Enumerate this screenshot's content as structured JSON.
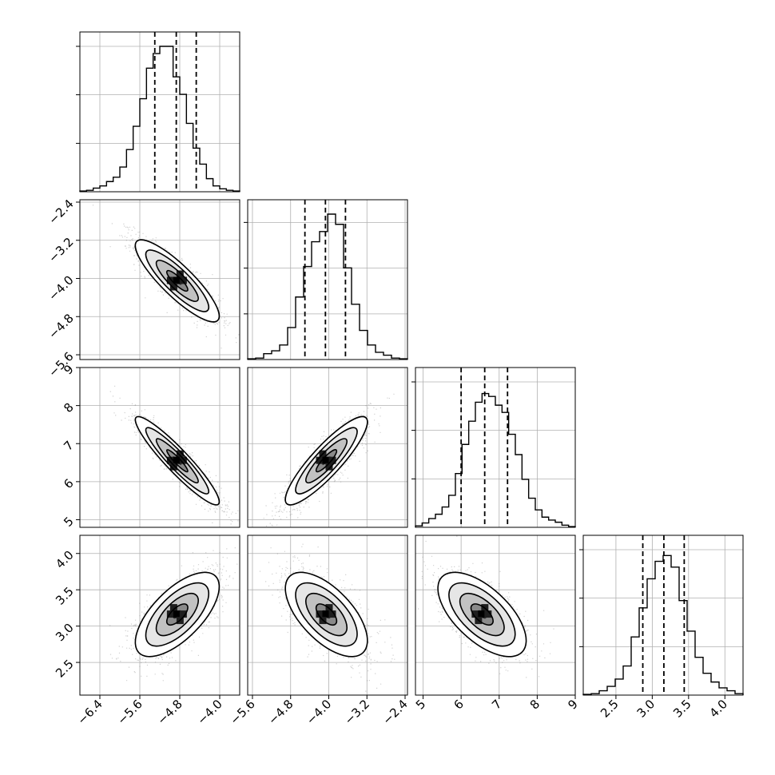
{
  "chart_data": {
    "type": "corner",
    "grid": true,
    "params": [
      {
        "range": [
          -6.8,
          -3.6
        ],
        "ticks": [
          "−6.4",
          "−5.6",
          "−4.8",
          "−4.0"
        ],
        "tick_values": [
          -6.4,
          -5.6,
          -4.8,
          -4.0
        ],
        "hist_max": 1.0,
        "hist_ticks": [
          1.0,
          0.667,
          0.333
        ],
        "quantiles": [
          -5.3,
          -4.87,
          -4.47
        ],
        "hist": [
          0.005,
          0.01,
          0.025,
          0.04,
          0.07,
          0.1,
          0.17,
          0.29,
          0.45,
          0.64,
          0.85,
          0.95,
          1.0,
          1.0,
          0.79,
          0.67,
          0.47,
          0.3,
          0.19,
          0.09,
          0.04,
          0.02,
          0.01,
          0.005
        ]
      },
      {
        "range": [
          -5.7,
          -2.35
        ],
        "ticks": [
          "−5.6",
          "−4.8",
          "−4.0",
          "−3.2",
          "−2.4"
        ],
        "tick_values": [
          -5.6,
          -4.8,
          -4.0,
          -3.2,
          -2.4
        ],
        "hist_max": 1.0,
        "hist_ticks": [
          0.943,
          0.629,
          0.314
        ],
        "quantiles": [
          -4.5,
          -4.07,
          -3.65
        ],
        "hist": [
          0.005,
          0.01,
          0.04,
          0.06,
          0.1,
          0.22,
          0.43,
          0.64,
          0.81,
          0.88,
          1.0,
          0.93,
          0.63,
          0.38,
          0.2,
          0.1,
          0.05,
          0.03,
          0.01,
          0.005
        ]
      },
      {
        "range": [
          4.8,
          9.0
        ],
        "ticks": [
          "5",
          "6",
          "7",
          "8",
          "9"
        ],
        "tick_values": [
          5,
          6,
          7,
          8,
          9
        ],
        "hist_max": 1.0,
        "hist_ticks": [
          1.0,
          0.667,
          0.333
        ],
        "quantiles": [
          6.0,
          6.62,
          7.22
        ],
        "hist": [
          0.01,
          0.03,
          0.06,
          0.09,
          0.14,
          0.22,
          0.37,
          0.57,
          0.73,
          0.86,
          0.92,
          0.9,
          0.84,
          0.79,
          0.64,
          0.5,
          0.33,
          0.2,
          0.12,
          0.07,
          0.05,
          0.035,
          0.015,
          0.005
        ]
      },
      {
        "range": [
          2.05,
          4.25
        ],
        "ticks": [
          "2.5",
          "3.0",
          "3.5",
          "4.0"
        ],
        "tick_values": [
          2.5,
          3.0,
          3.5,
          4.0
        ],
        "hist_max": 1.0,
        "hist_ticks": [
          1.0,
          0.667,
          0.333
        ],
        "quantiles": [
          2.87,
          3.16,
          3.44
        ],
        "hist": [
          0.005,
          0.01,
          0.03,
          0.06,
          0.11,
          0.2,
          0.4,
          0.6,
          0.8,
          0.92,
          0.96,
          0.88,
          0.65,
          0.44,
          0.26,
          0.15,
          0.09,
          0.05,
          0.03,
          0.01
        ]
      }
    ],
    "pairs": [
      {
        "row": 1,
        "col": 0,
        "mean": [
          -4.85,
          -4.05
        ],
        "sd": [
          0.42,
          0.43
        ],
        "rho": -0.86
      },
      {
        "row": 2,
        "col": 0,
        "mean": [
          -4.85,
          6.55
        ],
        "sd": [
          0.42,
          0.58
        ],
        "rho": -0.93
      },
      {
        "row": 2,
        "col": 1,
        "mean": [
          -4.05,
          6.55
        ],
        "sd": [
          0.43,
          0.58
        ],
        "rho": 0.88
      },
      {
        "row": 3,
        "col": 0,
        "mean": [
          -4.85,
          3.16
        ],
        "sd": [
          0.42,
          0.29
        ],
        "rho": 0.66
      },
      {
        "row": 3,
        "col": 1,
        "mean": [
          -4.05,
          3.16
        ],
        "sd": [
          0.43,
          0.29
        ],
        "rho": -0.62
      },
      {
        "row": 3,
        "col": 2,
        "mean": [
          6.55,
          3.16
        ],
        "sd": [
          0.58,
          0.29
        ],
        "rho": -0.62
      }
    ]
  }
}
